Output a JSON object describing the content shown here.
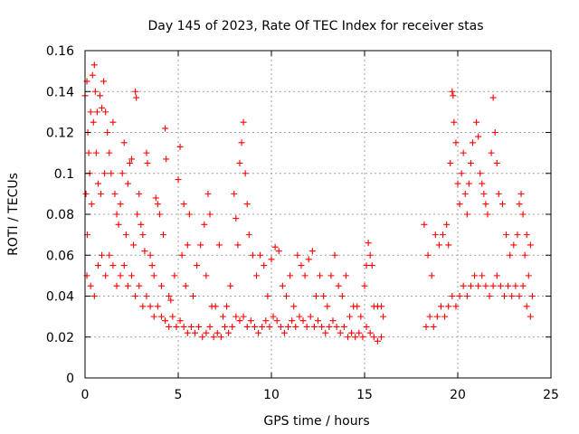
{
  "chart_data": {
    "type": "scatter",
    "title": "Day 145 of 2023, Rate Of TEC Index for receiver stas",
    "xlabel": "GPS time / hours",
    "ylabel": "ROTI / TECUs",
    "xlim": [
      0,
      25
    ],
    "ylim": [
      0,
      0.16
    ],
    "x_ticks": [
      0,
      5,
      10,
      15,
      20,
      25
    ],
    "x_tick_labels": [
      "0",
      "5",
      "10",
      "15",
      "20",
      "25"
    ],
    "y_ticks": [
      0,
      0.02,
      0.04,
      0.06,
      0.08,
      0.1,
      0.12,
      0.14,
      0.16
    ],
    "y_tick_labels": [
      "0",
      "0.02",
      "0.04",
      "0.06",
      "0.08",
      "0.1",
      "0.12",
      "0.14",
      "0.16"
    ],
    "grid": true,
    "marker": "+",
    "series": [
      {
        "color": "#ff0000",
        "points": [
          [
            0.0,
            0.138
          ],
          [
            0.05,
            0.09
          ],
          [
            0.1,
            0.145
          ],
          [
            0.12,
            0.07
          ],
          [
            0.15,
            0.12
          ],
          [
            0.2,
            0.11
          ],
          [
            0.25,
            0.1
          ],
          [
            0.3,
            0.13
          ],
          [
            0.35,
            0.085
          ],
          [
            0.4,
            0.148
          ],
          [
            0.45,
            0.125
          ],
          [
            0.5,
            0.153
          ],
          [
            0.55,
            0.14
          ],
          [
            0.6,
            0.11
          ],
          [
            0.65,
            0.13
          ],
          [
            0.7,
            0.095
          ],
          [
            0.8,
            0.138
          ],
          [
            0.85,
            0.09
          ],
          [
            0.9,
            0.132
          ],
          [
            1.0,
            0.145
          ],
          [
            1.05,
            0.1
          ],
          [
            1.1,
            0.13
          ],
          [
            1.2,
            0.12
          ],
          [
            1.3,
            0.11
          ],
          [
            1.4,
            0.1
          ],
          [
            1.5,
            0.125
          ],
          [
            1.6,
            0.09
          ],
          [
            1.7,
            0.08
          ],
          [
            1.8,
            0.075
          ],
          [
            1.9,
            0.085
          ],
          [
            2.0,
            0.1
          ],
          [
            2.1,
            0.115
          ],
          [
            2.2,
            0.07
          ],
          [
            2.3,
            0.095
          ],
          [
            2.4,
            0.105
          ],
          [
            2.5,
            0.107
          ],
          [
            2.6,
            0.065
          ],
          [
            2.7,
            0.14
          ],
          [
            2.75,
            0.137
          ],
          [
            2.8,
            0.08
          ],
          [
            2.9,
            0.09
          ],
          [
            3.0,
            0.075
          ],
          [
            3.1,
            0.07
          ],
          [
            3.2,
            0.062
          ],
          [
            3.3,
            0.11
          ],
          [
            3.35,
            0.105
          ],
          [
            3.5,
            0.06
          ],
          [
            3.6,
            0.055
          ],
          [
            3.7,
            0.05
          ],
          [
            3.8,
            0.088
          ],
          [
            3.9,
            0.085
          ],
          [
            4.0,
            0.08
          ],
          [
            4.1,
            0.045
          ],
          [
            4.2,
            0.07
          ],
          [
            4.3,
            0.122
          ],
          [
            4.35,
            0.107
          ],
          [
            4.5,
            0.04
          ],
          [
            4.6,
            0.038
          ],
          [
            4.8,
            0.05
          ],
          [
            5.0,
            0.097
          ],
          [
            5.1,
            0.113
          ],
          [
            5.2,
            0.06
          ],
          [
            5.3,
            0.085
          ],
          [
            5.4,
            0.045
          ],
          [
            5.5,
            0.065
          ],
          [
            5.6,
            0.08
          ],
          [
            5.8,
            0.04
          ],
          [
            6.0,
            0.055
          ],
          [
            6.2,
            0.065
          ],
          [
            6.4,
            0.075
          ],
          [
            6.5,
            0.05
          ],
          [
            6.6,
            0.09
          ],
          [
            6.7,
            0.08
          ],
          [
            6.8,
            0.035
          ],
          [
            7.0,
            0.035
          ],
          [
            7.2,
            0.065
          ],
          [
            7.4,
            0.03
          ],
          [
            7.6,
            0.035
          ],
          [
            7.8,
            0.045
          ],
          [
            8.0,
            0.09
          ],
          [
            8.1,
            0.078
          ],
          [
            8.2,
            0.065
          ],
          [
            8.3,
            0.105
          ],
          [
            8.4,
            0.115
          ],
          [
            8.5,
            0.125
          ],
          [
            8.6,
            0.1
          ],
          [
            8.7,
            0.085
          ],
          [
            8.8,
            0.07
          ],
          [
            9.0,
            0.06
          ],
          [
            9.2,
            0.05
          ],
          [
            9.4,
            0.06
          ],
          [
            9.6,
            0.055
          ],
          [
            9.8,
            0.04
          ],
          [
            10.0,
            0.058
          ],
          [
            10.2,
            0.064
          ],
          [
            10.4,
            0.062
          ],
          [
            10.6,
            0.045
          ],
          [
            10.8,
            0.04
          ],
          [
            11.0,
            0.05
          ],
          [
            11.2,
            0.035
          ],
          [
            11.4,
            0.06
          ],
          [
            11.6,
            0.055
          ],
          [
            11.8,
            0.05
          ],
          [
            12.0,
            0.058
          ],
          [
            12.2,
            0.062
          ],
          [
            12.4,
            0.04
          ],
          [
            12.6,
            0.05
          ],
          [
            12.8,
            0.04
          ],
          [
            13.0,
            0.035
          ],
          [
            13.2,
            0.05
          ],
          [
            13.4,
            0.06
          ],
          [
            13.6,
            0.045
          ],
          [
            13.8,
            0.04
          ],
          [
            14.0,
            0.05
          ],
          [
            14.2,
            0.03
          ],
          [
            14.4,
            0.035
          ],
          [
            14.6,
            0.035
          ],
          [
            14.8,
            0.03
          ],
          [
            15.0,
            0.045
          ],
          [
            15.1,
            0.055
          ],
          [
            15.2,
            0.066
          ],
          [
            15.3,
            0.06
          ],
          [
            15.4,
            0.055
          ],
          [
            15.5,
            0.035
          ],
          [
            15.7,
            0.035
          ],
          [
            15.9,
            0.035
          ],
          [
            16.0,
            0.03
          ],
          [
            18.2,
            0.075
          ],
          [
            18.4,
            0.06
          ],
          [
            18.6,
            0.05
          ],
          [
            18.8,
            0.07
          ],
          [
            19.0,
            0.065
          ],
          [
            19.2,
            0.07
          ],
          [
            19.4,
            0.075
          ],
          [
            19.5,
            0.065
          ],
          [
            19.6,
            0.105
          ],
          [
            19.7,
            0.14
          ],
          [
            19.75,
            0.138
          ],
          [
            19.8,
            0.125
          ],
          [
            19.9,
            0.115
          ],
          [
            20.0,
            0.095
          ],
          [
            20.1,
            0.085
          ],
          [
            20.2,
            0.1
          ],
          [
            20.3,
            0.11
          ],
          [
            20.4,
            0.09
          ],
          [
            20.5,
            0.08
          ],
          [
            20.6,
            0.095
          ],
          [
            20.7,
            0.105
          ],
          [
            20.8,
            0.115
          ],
          [
            21.0,
            0.125
          ],
          [
            21.1,
            0.118
          ],
          [
            21.2,
            0.1
          ],
          [
            21.3,
            0.095
          ],
          [
            21.4,
            0.09
          ],
          [
            21.5,
            0.085
          ],
          [
            21.6,
            0.08
          ],
          [
            21.8,
            0.11
          ],
          [
            21.9,
            0.137
          ],
          [
            22.0,
            0.12
          ],
          [
            22.1,
            0.105
          ],
          [
            22.2,
            0.09
          ],
          [
            22.4,
            0.085
          ],
          [
            22.6,
            0.07
          ],
          [
            22.8,
            0.06
          ],
          [
            23.0,
            0.065
          ],
          [
            23.2,
            0.07
          ],
          [
            23.3,
            0.085
          ],
          [
            23.4,
            0.09
          ],
          [
            23.5,
            0.08
          ],
          [
            23.6,
            0.06
          ],
          [
            23.7,
            0.07
          ],
          [
            23.8,
            0.05
          ],
          [
            23.9,
            0.065
          ],
          [
            24.0,
            0.04
          ],
          [
            0.1,
            0.05
          ],
          [
            0.3,
            0.045
          ],
          [
            0.5,
            0.04
          ],
          [
            0.7,
            0.055
          ],
          [
            0.9,
            0.06
          ],
          [
            1.1,
            0.05
          ],
          [
            1.3,
            0.06
          ],
          [
            1.5,
            0.055
          ],
          [
            1.7,
            0.045
          ],
          [
            1.9,
            0.05
          ],
          [
            2.1,
            0.055
          ],
          [
            2.3,
            0.045
          ],
          [
            2.5,
            0.05
          ],
          [
            2.7,
            0.04
          ],
          [
            2.9,
            0.045
          ],
          [
            3.1,
            0.035
          ],
          [
            3.3,
            0.04
          ],
          [
            3.5,
            0.035
          ],
          [
            3.7,
            0.03
          ],
          [
            3.9,
            0.035
          ],
          [
            4.1,
            0.03
          ],
          [
            4.3,
            0.028
          ],
          [
            4.5,
            0.025
          ],
          [
            4.7,
            0.03
          ],
          [
            4.9,
            0.025
          ],
          [
            5.1,
            0.028
          ],
          [
            5.3,
            0.025
          ],
          [
            5.5,
            0.022
          ],
          [
            5.7,
            0.025
          ],
          [
            5.9,
            0.022
          ],
          [
            6.1,
            0.025
          ],
          [
            6.3,
            0.02
          ],
          [
            6.5,
            0.022
          ],
          [
            6.7,
            0.025
          ],
          [
            6.9,
            0.02
          ],
          [
            7.1,
            0.022
          ],
          [
            7.3,
            0.02
          ],
          [
            7.5,
            0.025
          ],
          [
            7.7,
            0.022
          ],
          [
            7.9,
            0.025
          ],
          [
            8.1,
            0.03
          ],
          [
            8.3,
            0.028
          ],
          [
            8.5,
            0.03
          ],
          [
            8.7,
            0.025
          ],
          [
            8.9,
            0.028
          ],
          [
            9.1,
            0.025
          ],
          [
            9.3,
            0.022
          ],
          [
            9.5,
            0.025
          ],
          [
            9.7,
            0.028
          ],
          [
            9.9,
            0.025
          ],
          [
            10.1,
            0.03
          ],
          [
            10.3,
            0.028
          ],
          [
            10.5,
            0.025
          ],
          [
            10.7,
            0.022
          ],
          [
            10.9,
            0.025
          ],
          [
            11.1,
            0.028
          ],
          [
            11.3,
            0.025
          ],
          [
            11.5,
            0.03
          ],
          [
            11.7,
            0.028
          ],
          [
            11.9,
            0.025
          ],
          [
            12.1,
            0.03
          ],
          [
            12.3,
            0.025
          ],
          [
            12.5,
            0.028
          ],
          [
            12.7,
            0.025
          ],
          [
            12.9,
            0.022
          ],
          [
            13.1,
            0.025
          ],
          [
            13.3,
            0.028
          ],
          [
            13.5,
            0.025
          ],
          [
            13.7,
            0.022
          ],
          [
            13.9,
            0.025
          ],
          [
            14.1,
            0.02
          ],
          [
            14.3,
            0.022
          ],
          [
            14.5,
            0.02
          ],
          [
            14.7,
            0.022
          ],
          [
            14.9,
            0.02
          ],
          [
            15.1,
            0.025
          ],
          [
            15.3,
            0.022
          ],
          [
            15.5,
            0.02
          ],
          [
            15.7,
            0.018
          ],
          [
            15.9,
            0.02
          ],
          [
            18.3,
            0.025
          ],
          [
            18.5,
            0.03
          ],
          [
            18.7,
            0.025
          ],
          [
            18.9,
            0.03
          ],
          [
            19.1,
            0.035
          ],
          [
            19.3,
            0.03
          ],
          [
            19.5,
            0.035
          ],
          [
            19.7,
            0.04
          ],
          [
            19.9,
            0.035
          ],
          [
            20.1,
            0.04
          ],
          [
            20.3,
            0.045
          ],
          [
            20.5,
            0.04
          ],
          [
            20.7,
            0.045
          ],
          [
            20.9,
            0.05
          ],
          [
            21.1,
            0.045
          ],
          [
            21.3,
            0.05
          ],
          [
            21.5,
            0.045
          ],
          [
            21.7,
            0.04
          ],
          [
            21.9,
            0.045
          ],
          [
            22.1,
            0.05
          ],
          [
            22.3,
            0.045
          ],
          [
            22.5,
            0.04
          ],
          [
            22.7,
            0.045
          ],
          [
            22.9,
            0.04
          ],
          [
            23.1,
            0.045
          ],
          [
            23.3,
            0.04
          ],
          [
            23.5,
            0.045
          ],
          [
            23.7,
            0.035
          ],
          [
            23.9,
            0.03
          ]
        ]
      }
    ]
  }
}
